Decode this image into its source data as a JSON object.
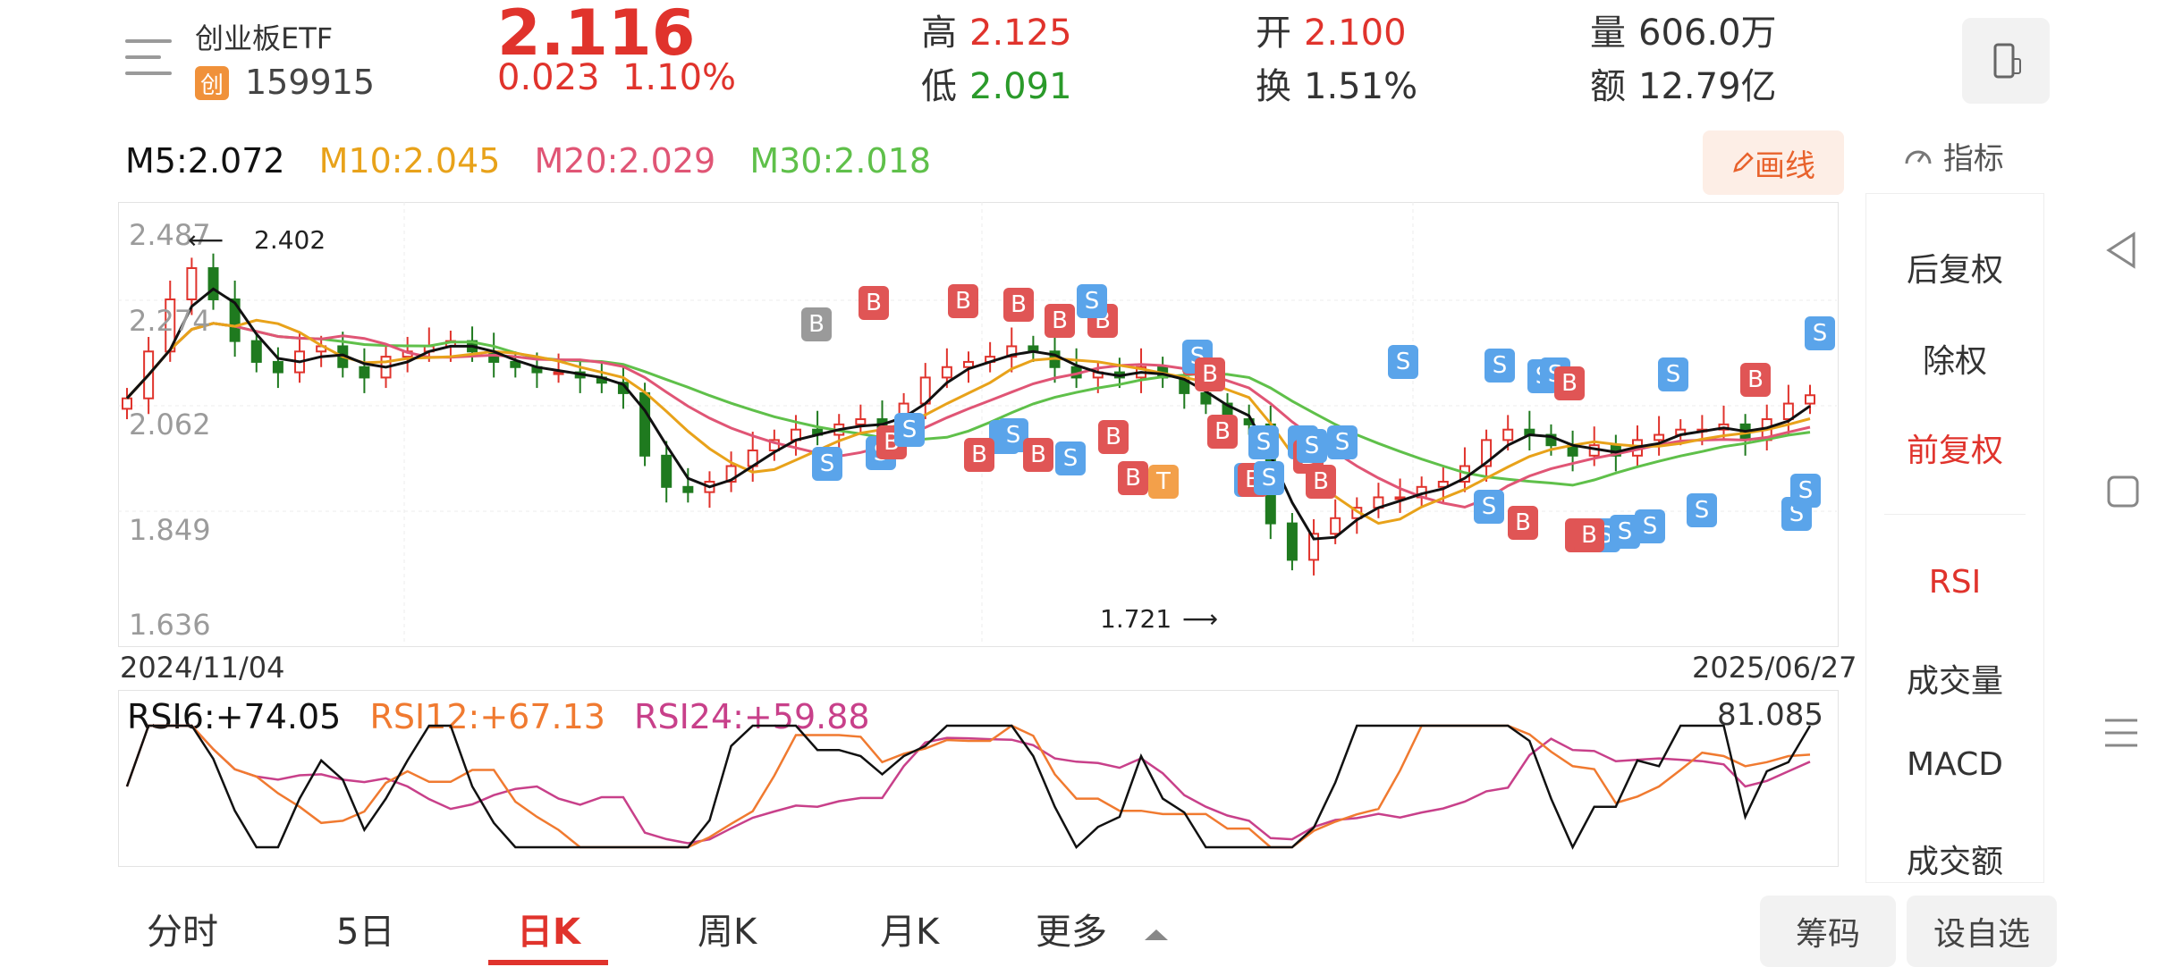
{
  "header": {
    "name": "创业板ETF",
    "badge": "创",
    "code": "159915",
    "price": "2.116",
    "change": "0.023",
    "change_pct": "1.10%",
    "stats": [
      {
        "label": "高",
        "value": "2.125",
        "color": "red"
      },
      {
        "label": "低",
        "value": "2.091",
        "color": "green"
      },
      {
        "label": "开",
        "value": "2.100",
        "color": "red"
      },
      {
        "label": "换",
        "value": "1.51%",
        "color": "plain"
      },
      {
        "label": "量",
        "value": "606.0万",
        "color": "plain"
      },
      {
        "label": "额",
        "value": "12.79亿",
        "color": "plain"
      }
    ]
  },
  "ma": {
    "m5": "M5:2.072",
    "m10": "M10:2.045",
    "m20": "M20:2.029",
    "m30": "M30:2.018",
    "colors": {
      "m5": "#111111",
      "m10": "#e8a21a",
      "m20": "#e05575",
      "m30": "#5fc04a"
    }
  },
  "toolbar": {
    "draw_label": "画线",
    "indicator_label": "指标"
  },
  "chart": {
    "y_labels": [
      "2.487",
      "2.274",
      "2.062",
      "1.849",
      "1.636"
    ],
    "start_date": "2024/11/04",
    "end_date": "2025/06/27",
    "high_annotation": "2.402",
    "low_annotation": "1.721"
  },
  "side_menu": [
    "后复权",
    "除权",
    "前复权",
    "RSI",
    "成交量",
    "MACD",
    "成交额"
  ],
  "rsi": {
    "rsi6": "RSI6:+74.05",
    "rsi12": "RSI12:+67.13",
    "rsi24": "RSI24:+59.88",
    "max": "81.085",
    "colors": {
      "rsi6": "#111111",
      "rsi12": "#f07a30",
      "rsi24": "#c8408a"
    }
  },
  "tabs": [
    "分时",
    "5日",
    "日K",
    "周K",
    "月K",
    "更多"
  ],
  "buttons": {
    "chips": "筹码",
    "watchlist": "设自选"
  },
  "chart_data": {
    "type": "candlestick",
    "ylim": [
      1.636,
      2.487
    ],
    "x_range": [
      "2024/11/04",
      "2025/06/27"
    ],
    "close_approx": [
      2.11,
      2.2,
      2.3,
      2.36,
      2.3,
      2.22,
      2.18,
      2.16,
      2.2,
      2.21,
      2.17,
      2.15,
      2.19,
      2.2,
      2.21,
      2.22,
      2.2,
      2.18,
      2.17,
      2.16,
      2.16,
      2.15,
      2.14,
      2.12,
      2.0,
      1.94,
      1.93,
      1.95,
      1.98,
      2.01,
      2.03,
      2.05,
      2.04,
      2.06,
      2.07,
      2.05,
      2.1,
      2.15,
      2.17,
      2.18,
      2.19,
      2.21,
      2.2,
      2.17,
      2.15,
      2.16,
      2.15,
      2.17,
      2.15,
      2.12,
      2.1,
      2.07,
      2.06,
      1.87,
      1.8,
      1.85,
      1.88,
      1.9,
      1.92,
      1.92,
      1.94,
      1.95,
      1.98,
      2.03,
      2.05,
      2.04,
      2.02,
      2.0,
      2.02,
      2.0,
      2.03,
      2.04,
      2.05,
      2.05,
      2.06,
      2.03,
      2.07,
      2.1,
      2.116
    ]
  }
}
